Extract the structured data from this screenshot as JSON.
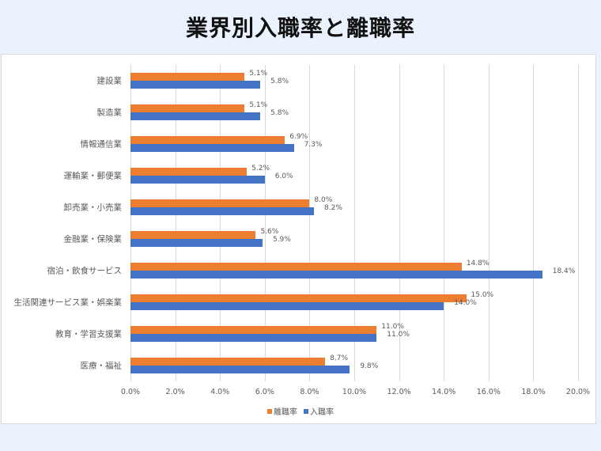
{
  "title": "業界別入職率と離職率",
  "legend": {
    "items": [
      {
        "label": "離職率",
        "color": "#ed7d31"
      },
      {
        "label": "入職率",
        "color": "#4472c4"
      }
    ]
  },
  "chart_data": {
    "type": "bar",
    "orientation": "horizontal",
    "title": "業界別入職率と離職率",
    "xlabel": "",
    "ylabel": "",
    "xlim": [
      0,
      20
    ],
    "x_ticks": [
      "0.0%",
      "2.0%",
      "4.0%",
      "6.0%",
      "8.0%",
      "10.0%",
      "12.0%",
      "14.0%",
      "16.0%",
      "18.0%",
      "20.0%"
    ],
    "grid": true,
    "legend_position": "bottom",
    "categories": [
      "建設業",
      "製造業",
      "情報通信業",
      "運輸業・郵便業",
      "卸売業・小売業",
      "金融業・保険業",
      "宿泊・飲食サービス",
      "生活関連サービス業・娯楽業",
      "教育・学習支援業",
      "医療・福祉"
    ],
    "series": [
      {
        "name": "離職率",
        "color": "#ed7d31",
        "values": [
          5.1,
          5.1,
          6.9,
          5.2,
          8.0,
          5.6,
          14.8,
          15.0,
          11.0,
          8.7
        ],
        "labels": [
          "5.1%",
          "5.1%",
          "6.9%",
          "5.2%",
          "8.0%",
          "5.6%",
          "14.8%",
          "15.0%",
          "11.0%",
          "8.7%"
        ]
      },
      {
        "name": "入職率",
        "color": "#4472c4",
        "values": [
          5.8,
          5.8,
          7.3,
          6.0,
          8.2,
          5.9,
          18.4,
          14.0,
          11.0,
          9.8
        ],
        "labels": [
          "5.8%",
          "5.8%",
          "7.3%",
          "6.0%",
          "8.2%",
          "5.9%",
          "18.4%",
          "14.0%",
          "11.0%",
          "9.8%"
        ]
      }
    ]
  }
}
